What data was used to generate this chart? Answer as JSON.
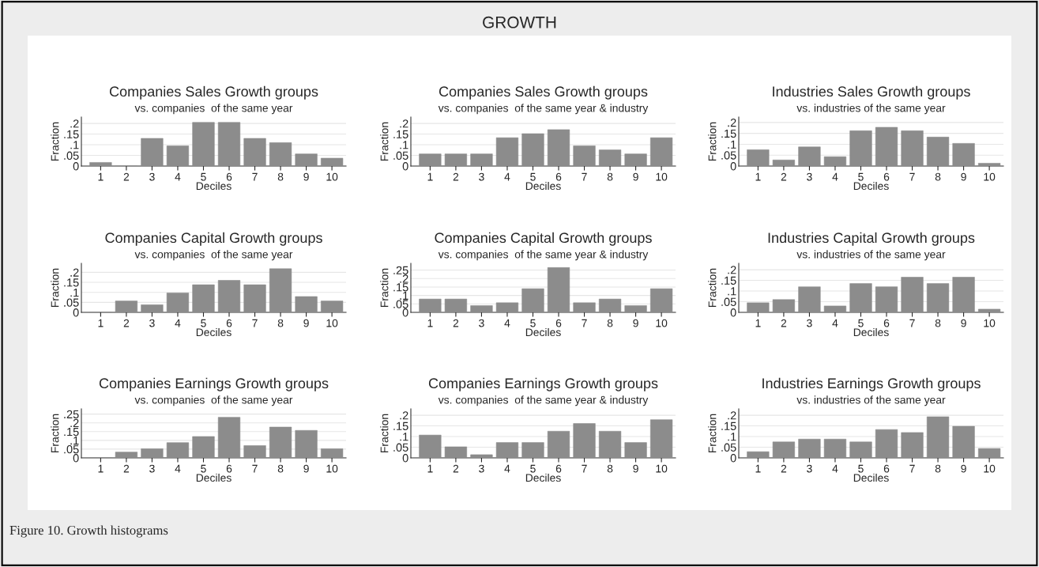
{
  "chart_data": [
    {
      "type": "other",
      "title": "GROWTH",
      "annotations": [
        "Figure 10. Growth histograms"
      ]
    },
    {
      "type": "bar",
      "title": "Companies Sales Growth groups",
      "subtitle": "vs. companies  of the same year",
      "xlabel": "Deciles",
      "ylabel": "Fraction",
      "categories": [
        "1",
        "2",
        "3",
        "4",
        "5",
        "6",
        "7",
        "8",
        "9",
        "10"
      ],
      "values": [
        0.017,
        0,
        0.13,
        0.095,
        0.205,
        0.205,
        0.13,
        0.11,
        0.057,
        0.037
      ],
      "color": "#8c8c8c",
      "ylim": [
        0,
        0.23
      ],
      "yticks": [
        0,
        {
          "value": 0.05,
          "label": ".05"
        },
        {
          "value": 0.1,
          "label": ".1"
        },
        {
          "value": 0.15,
          "label": ".15"
        },
        {
          "value": 0.2,
          "label": ".2"
        }
      ],
      "grid": "y"
    },
    {
      "type": "bar",
      "title": "Companies Sales Growth groups",
      "subtitle": "vs. companies  of the same year & industry",
      "xlabel": "Deciles",
      "ylabel": "Fraction",
      "categories": [
        "1",
        "2",
        "3",
        "4",
        "5",
        "6",
        "7",
        "8",
        "9",
        "10"
      ],
      "values": [
        0.057,
        0.057,
        0.057,
        0.133,
        0.152,
        0.171,
        0.095,
        0.076,
        0.057,
        0.133
      ],
      "color": "#8c8c8c",
      "ylim": [
        0,
        0.23
      ],
      "yticks": [
        0,
        {
          "value": 0.05,
          "label": ".05"
        },
        {
          "value": 0.1,
          "label": ".1"
        },
        {
          "value": 0.15,
          "label": ".15"
        },
        {
          "value": 0.2,
          "label": ".2"
        }
      ],
      "grid": "y"
    },
    {
      "type": "bar",
      "title": "Industries Sales Growth groups",
      "subtitle": "vs. industries of the same year",
      "xlabel": "Deciles",
      "ylabel": "Fraction",
      "categories": [
        "1",
        "2",
        "3",
        "4",
        "5",
        "6",
        "7",
        "8",
        "9",
        "10"
      ],
      "values": [
        0.075,
        0.028,
        0.088,
        0.043,
        0.162,
        0.178,
        0.162,
        0.133,
        0.104,
        0.013
      ],
      "color": "#8c8c8c",
      "ylim": [
        0,
        0.225
      ],
      "yticks": [
        0,
        {
          "value": 0.05,
          "label": ".05"
        },
        {
          "value": 0.1,
          "label": ".1"
        },
        {
          "value": 0.15,
          "label": ".15"
        },
        {
          "value": 0.2,
          "label": ".2"
        }
      ],
      "grid": "y"
    },
    {
      "type": "bar",
      "title": "Companies Capital Growth groups",
      "subtitle": "vs. companies  of the same year",
      "xlabel": "Deciles",
      "ylabel": "Fraction",
      "categories": [
        "1",
        "2",
        "3",
        "4",
        "5",
        "6",
        "7",
        "8",
        "9",
        "10"
      ],
      "values": [
        0,
        0.057,
        0.038,
        0.097,
        0.138,
        0.16,
        0.138,
        0.218,
        0.079,
        0.057
      ],
      "color": "#8c8c8c",
      "ylim": [
        0,
        0.245
      ],
      "yticks": [
        0,
        {
          "value": 0.05,
          "label": ".05"
        },
        {
          "value": 0.1,
          "label": ".1"
        },
        {
          "value": 0.15,
          "label": ".15"
        },
        {
          "value": 0.2,
          "label": ".2"
        }
      ],
      "grid": "y"
    },
    {
      "type": "bar",
      "title": "Companies Capital Growth groups",
      "subtitle": "vs. companies  of the same year & industry",
      "xlabel": "Deciles",
      "ylabel": "Fraction",
      "categories": [
        "1",
        "2",
        "3",
        "4",
        "5",
        "6",
        "7",
        "8",
        "9",
        "10"
      ],
      "values": [
        0.079,
        0.079,
        0.04,
        0.057,
        0.14,
        0.265,
        0.057,
        0.079,
        0.04,
        0.14
      ],
      "color": "#8c8c8c",
      "ylim": [
        0,
        0.29
      ],
      "yticks": [
        0,
        {
          "value": 0.05,
          "label": ".05"
        },
        {
          "value": 0.1,
          "label": ".1"
        },
        {
          "value": 0.15,
          "label": ".15"
        },
        {
          "value": 0.2,
          "label": ".2"
        },
        {
          "value": 0.25,
          "label": ".25"
        }
      ],
      "grid": "y"
    },
    {
      "type": "bar",
      "title": "Industries Capital Growth groups",
      "subtitle": "vs. industries of the same year",
      "xlabel": "Deciles",
      "ylabel": "Fraction",
      "categories": [
        "1",
        "2",
        "3",
        "4",
        "5",
        "6",
        "7",
        "8",
        "9",
        "10"
      ],
      "values": [
        0.045,
        0.06,
        0.12,
        0.03,
        0.135,
        0.12,
        0.165,
        0.135,
        0.165,
        0.015
      ],
      "color": "#8c8c8c",
      "ylim": [
        0,
        0.23
      ],
      "yticks": [
        0,
        {
          "value": 0.05,
          "label": ".05"
        },
        {
          "value": 0.1,
          "label": ".1"
        },
        {
          "value": 0.15,
          "label": ".15"
        },
        {
          "value": 0.2,
          "label": ".2"
        }
      ],
      "grid": "y"
    },
    {
      "type": "bar",
      "title": "Companies Earnings Growth groups",
      "subtitle": "vs. companies  of the same year",
      "xlabel": "Deciles",
      "ylabel": "Fraction",
      "categories": [
        "1",
        "2",
        "3",
        "4",
        "5",
        "6",
        "7",
        "8",
        "9",
        "10"
      ],
      "values": [
        0,
        0.033,
        0.052,
        0.087,
        0.122,
        0.232,
        0.07,
        0.176,
        0.157,
        0.052
      ],
      "color": "#8c8c8c",
      "ylim": [
        0,
        0.28
      ],
      "yticks": [
        0,
        {
          "value": 0.05,
          "label": ".05"
        },
        {
          "value": 0.1,
          "label": ".1"
        },
        {
          "value": 0.15,
          "label": ".15"
        },
        {
          "value": 0.2,
          "label": ".2"
        },
        {
          "value": 0.25,
          "label": ".25"
        }
      ],
      "grid": "y"
    },
    {
      "type": "bar",
      "title": "Companies Earnings Growth groups",
      "subtitle": "vs. companies  of the same year & industry",
      "xlabel": "Deciles",
      "ylabel": "Fraction",
      "categories": [
        "1",
        "2",
        "3",
        "4",
        "5",
        "6",
        "7",
        "8",
        "9",
        "10"
      ],
      "values": [
        0.107,
        0.052,
        0.015,
        0.072,
        0.072,
        0.125,
        0.161,
        0.125,
        0.072,
        0.179
      ],
      "color": "#8c8c8c",
      "ylim": [
        0,
        0.23
      ],
      "yticks": [
        0,
        {
          "value": 0.05,
          "label": ".05"
        },
        {
          "value": 0.1,
          "label": ".1"
        },
        {
          "value": 0.15,
          "label": ".15"
        },
        {
          "value": 0.2,
          "label": ".2"
        }
      ],
      "grid": "y"
    },
    {
      "type": "bar",
      "title": "Industries Earnings Growth groups",
      "subtitle": "vs. industries of the same year",
      "xlabel": "Deciles",
      "ylabel": "Fraction",
      "categories": [
        "1",
        "2",
        "3",
        "4",
        "5",
        "6",
        "7",
        "8",
        "9",
        "10"
      ],
      "values": [
        0.029,
        0.075,
        0.088,
        0.088,
        0.075,
        0.133,
        0.119,
        0.193,
        0.148,
        0.044
      ],
      "color": "#8c8c8c",
      "ylim": [
        0,
        0.23
      ],
      "yticks": [
        0,
        {
          "value": 0.05,
          "label": ".05"
        },
        {
          "value": 0.1,
          "label": ".1"
        },
        {
          "value": 0.15,
          "label": ".15"
        },
        {
          "value": 0.2,
          "label": ".2"
        }
      ],
      "grid": "y"
    }
  ]
}
